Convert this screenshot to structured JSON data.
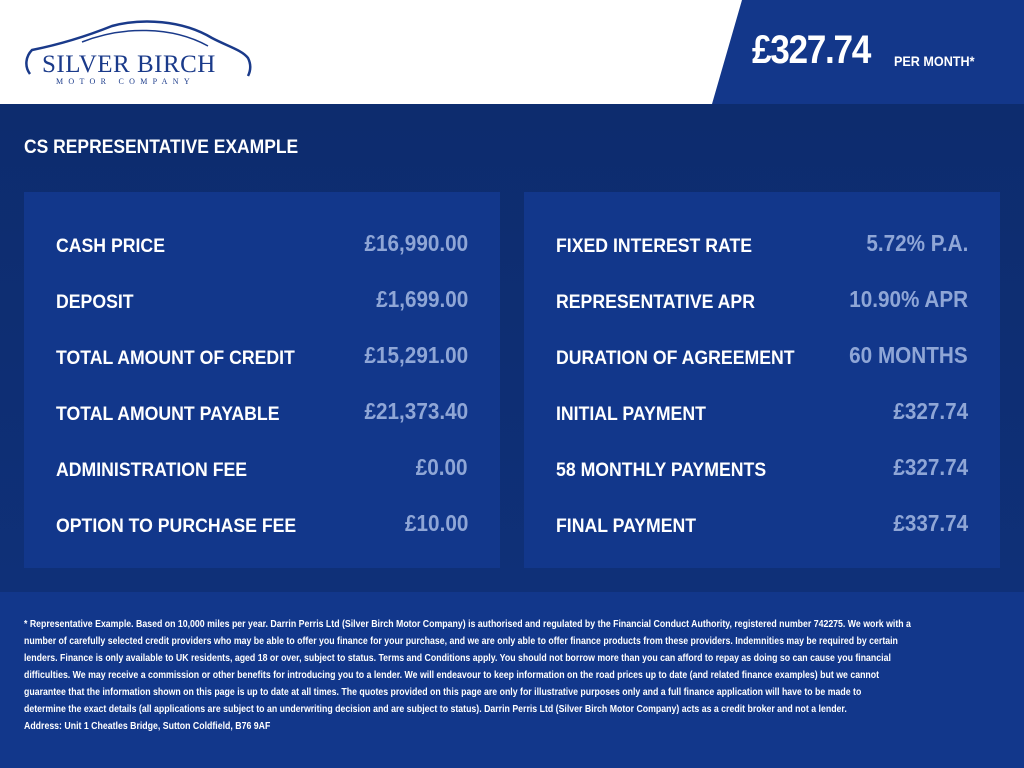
{
  "header": {
    "logo": {
      "name": "SILVER BIRCH",
      "sub": "MOTOR COMPANY"
    },
    "monthly_price": "£327.74",
    "per_month_label": "PER MONTH*"
  },
  "colors": {
    "brand": "#13378a",
    "background": "#0f2f74",
    "value_text": "#8fa6d6"
  },
  "main": {
    "title": "CS REPRESENTATIVE EXAMPLE",
    "left_rows": [
      {
        "label": "CASH PRICE",
        "value": "£16,990.00"
      },
      {
        "label": "DEPOSIT",
        "value": "£1,699.00"
      },
      {
        "label": "TOTAL AMOUNT OF CREDIT",
        "value": "£15,291.00"
      },
      {
        "label": "TOTAL AMOUNT PAYABLE",
        "value": "£21,373.40"
      },
      {
        "label": "ADMINISTRATION FEE",
        "value": "£0.00"
      },
      {
        "label": "OPTION TO PURCHASE FEE",
        "value": "£10.00"
      }
    ],
    "right_rows": [
      {
        "label": "FIXED INTEREST RATE",
        "value": "5.72% P.A."
      },
      {
        "label": "REPRESENTATIVE APR",
        "value": "10.90% APR"
      },
      {
        "label": "DURATION OF AGREEMENT",
        "value": "60 MONTHS"
      },
      {
        "label": "INITIAL PAYMENT",
        "value": "£327.74"
      },
      {
        "label": "58 MONTHLY PAYMENTS",
        "value": "£327.74"
      },
      {
        "label": "FINAL PAYMENT",
        "value": "£337.74"
      }
    ]
  },
  "footer": {
    "lines": [
      "* Representative Example. Based on 10,000 miles per year. Darrin Perris Ltd (Silver Birch Motor Company) is authorised and regulated by the Financial Conduct Authority, registered number 742275. We work with a",
      "number of carefully selected credit providers who may be able to offer you finance for your purchase, and we are only able to offer finance products from these providers. Indemnities may be required by certain",
      "lenders. Finance is only available to UK residents, aged 18 or over, subject to status. Terms and Conditions apply. You should not borrow more than you can afford to repay as doing so can cause you financial",
      "difficulties. We may receive a commission or other benefits for introducing you to a lender. We will endeavour to keep information on the road prices up to date (and related finance examples) but we cannot",
      "guarantee that the information shown on this page is up to date at all times. The quotes provided on this page are only for illustrative purposes only and a full finance application will have to be made to",
      "determine the exact details (all applications are subject to an underwriting decision and are subject to status). Darrin Perris Ltd (Silver Birch Motor Company) acts as a credit broker and not a lender.",
      "Address: Unit 1 Cheatles Bridge, Sutton Coldfield, B76 9AF"
    ]
  }
}
